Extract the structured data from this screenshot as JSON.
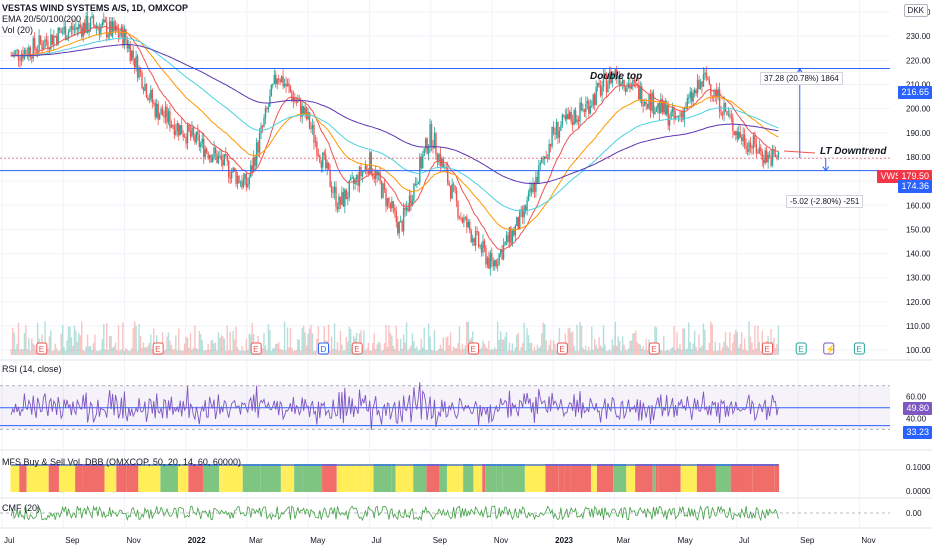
{
  "header": {
    "title": "VESTAS WIND SYSTEMS A/S, 1D, OMXCOP",
    "ema": "EMA 20/50/100/200",
    "vol": "Vol (20)"
  },
  "currency": "DKK",
  "price_axis_ticks": [
    "240.00",
    "230.00",
    "220.00",
    "210.00",
    "200.00",
    "190.00",
    "180.00",
    "170.00",
    "160.00",
    "150.00",
    "140.00",
    "130.00",
    "120.00",
    "110.00",
    "100.00"
  ],
  "price_tags": {
    "upper_line": "216.65",
    "vws_symbol": "VWS",
    "vws_price": "179.50",
    "lower_line": "174.36"
  },
  "annotations": {
    "double_top": "Double top",
    "lt_downtrend": "LT Downtrend",
    "measure_up": "37.28 (20.78%) 1864",
    "measure_down": "-5.02 (-2.80%) -251"
  },
  "event_markers": [
    "E",
    "E",
    "E",
    "D",
    "E",
    "E",
    "E",
    "E",
    "E",
    "E",
    "⚡",
    "E"
  ],
  "rsi": {
    "label": "RSI (14, close)",
    "ticks": [
      "60.00",
      "40.00"
    ],
    "value": "49.80",
    "oversold_tag": "33.23"
  },
  "mfs": {
    "label": "MFS Buy & Sell Vol. DBB (OMXCOP, 50, 20, 14, 60, 60000)",
    "ticks": [
      "0.1000",
      "0.0000"
    ]
  },
  "cmf": {
    "label": "CMF (20)",
    "ticks": [
      "0.00"
    ]
  },
  "time_axis": [
    "Jul",
    "Sep",
    "Nov",
    "2022",
    "Mar",
    "May",
    "Jul",
    "Sep",
    "Nov",
    "2023",
    "Mar",
    "May",
    "Jul",
    "Sep",
    "Nov"
  ],
  "colors": {
    "up": "#26a69a",
    "down": "#ef5350",
    "blue_line": "#2962ff",
    "ema20": "#ef5350",
    "ema50": "#ff9800",
    "ema100": "#4dd0e1",
    "ema200": "#5e35b1",
    "rsi": "#7e57c2",
    "cmf": "#43a047",
    "vws_tag": "#f23645"
  },
  "chart_data": {
    "type": "candlestick",
    "title": "VESTAS WIND SYSTEMS A/S, 1D, OMXCOP",
    "currency": "DKK",
    "x_range": [
      "2021-06",
      "2023-11"
    ],
    "y_range": [
      100,
      245
    ],
    "horizontal_lines": [
      216.65,
      174.36
    ],
    "last_price": 179.5,
    "monthly_close_approx": [
      {
        "x": "2021-07",
        "y": 225
      },
      {
        "x": "2021-08",
        "y": 232
      },
      {
        "x": "2021-09",
        "y": 235
      },
      {
        "x": "2021-10",
        "y": 230
      },
      {
        "x": "2021-11",
        "y": 200
      },
      {
        "x": "2022-01",
        "y": 180
      },
      {
        "x": "2022-02",
        "y": 168
      },
      {
        "x": "2022-03",
        "y": 215
      },
      {
        "x": "2022-04",
        "y": 195
      },
      {
        "x": "2022-05",
        "y": 160
      },
      {
        "x": "2022-06",
        "y": 178
      },
      {
        "x": "2022-07",
        "y": 150
      },
      {
        "x": "2022-08",
        "y": 190
      },
      {
        "x": "2022-09",
        "y": 155
      },
      {
        "x": "2022-10",
        "y": 135
      },
      {
        "x": "2022-11",
        "y": 155
      },
      {
        "x": "2022-12",
        "y": 190
      },
      {
        "x": "2023-01",
        "y": 200
      },
      {
        "x": "2023-02",
        "y": 215
      },
      {
        "x": "2023-03",
        "y": 205
      },
      {
        "x": "2023-04",
        "y": 195
      },
      {
        "x": "2023-05",
        "y": 213
      },
      {
        "x": "2023-06",
        "y": 190
      },
      {
        "x": "2023-07",
        "y": 180
      }
    ],
    "rsi_range": [
      20,
      80
    ],
    "rsi_last": 49.8
  }
}
